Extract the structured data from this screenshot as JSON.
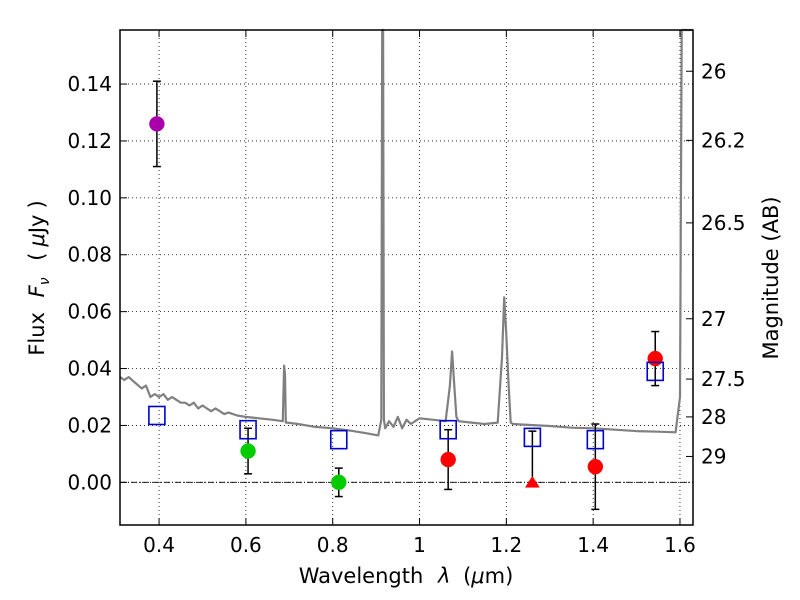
{
  "chart_data": {
    "type": "scatter",
    "xlabel_prefix": "Wavelength",
    "xlabel_symbol": "λ",
    "xlabel_unit_open": "(",
    "xlabel_unit_mu": "μ",
    "xlabel_unit_rest": "m)",
    "ylabel_prefix": "Flux",
    "ylabel_symbol": "F",
    "ylabel_subscript": "ν",
    "ylabel_unit_open": "(",
    "ylabel_unit_mu": "μ",
    "ylabel_unit_rest": "Jy",
    "ylabel_unit_close": ")",
    "y2label": "Magnitude (AB)",
    "xlim": [
      0.31,
      1.63
    ],
    "ylim": [
      -0.015,
      0.159
    ],
    "x_ticks": [
      0.4,
      0.6,
      0.8,
      1.0,
      1.2,
      1.4,
      1.6
    ],
    "x_tick_labels": [
      "0.4",
      "0.6",
      "0.8",
      "1",
      "1.2",
      "1.4",
      "1.6"
    ],
    "y_ticks": [
      0.0,
      0.02,
      0.04,
      0.06,
      0.08,
      0.1,
      0.12,
      0.14
    ],
    "y_tick_labels": [
      "0.00",
      "0.02",
      "0.04",
      "0.06",
      "0.08",
      "0.10",
      "0.12",
      "0.14"
    ],
    "y2_ticks": [
      {
        "label": "26",
        "flux": 0.1445
      },
      {
        "label": "26.2",
        "flux": 0.1202
      },
      {
        "label": "26.5",
        "flux": 0.0912
      },
      {
        "label": "27",
        "flux": 0.0575
      },
      {
        "label": "27.5",
        "flux": 0.0363
      },
      {
        "label": "28",
        "flux": 0.023
      },
      {
        "label": "29",
        "flux": 0.0091
      }
    ],
    "grid": true,
    "zero_line": true,
    "series": [
      {
        "name": "observed-violet",
        "marker": "circle",
        "color": "#aa00aa",
        "points": [
          {
            "x": 0.395,
            "y": 0.126,
            "err": 0.015
          }
        ]
      },
      {
        "name": "observed-green",
        "marker": "circle",
        "color": "#00cc00",
        "points": [
          {
            "x": 0.605,
            "y": 0.011,
            "err": 0.008
          },
          {
            "x": 0.814,
            "y": 0.0,
            "err": 0.005
          }
        ]
      },
      {
        "name": "observed-red",
        "marker": "circle",
        "color": "#ff0000",
        "points": [
          {
            "x": 1.066,
            "y": 0.008,
            "err": 0.0105
          },
          {
            "x": 1.405,
            "y": 0.0055,
            "err": 0.015
          },
          {
            "x": 1.543,
            "y": 0.0435,
            "err": 0.0095
          }
        ]
      },
      {
        "name": "upper-limit",
        "marker": "triangle",
        "color": "#ff0000",
        "points": [
          {
            "x": 1.26,
            "y": 0.0,
            "err_low": 0.0,
            "err_high": 0.018
          }
        ]
      },
      {
        "name": "model-photometry",
        "marker": "square-open",
        "color": "#0000cc",
        "points": [
          {
            "x": 0.395,
            "y": 0.0235
          },
          {
            "x": 0.605,
            "y": 0.0185
          },
          {
            "x": 0.814,
            "y": 0.015
          },
          {
            "x": 1.066,
            "y": 0.0185
          },
          {
            "x": 1.26,
            "y": 0.0158
          },
          {
            "x": 1.405,
            "y": 0.015
          },
          {
            "x": 1.543,
            "y": 0.039
          }
        ]
      },
      {
        "name": "model-spectrum",
        "type": "line",
        "color": "#808080",
        "x": [
          0.31,
          0.32,
          0.33,
          0.345,
          0.36,
          0.37,
          0.38,
          0.39,
          0.4,
          0.41,
          0.42,
          0.43,
          0.44,
          0.45,
          0.46,
          0.47,
          0.48,
          0.49,
          0.5,
          0.51,
          0.52,
          0.53,
          0.54,
          0.55,
          0.56,
          0.58,
          0.6,
          0.63,
          0.66,
          0.685,
          0.688,
          0.69,
          0.692,
          0.695,
          0.72,
          0.76,
          0.8,
          0.84,
          0.88,
          0.905,
          0.912,
          0.914,
          0.916,
          0.918,
          0.921,
          0.93,
          0.94,
          0.95,
          0.96,
          0.97,
          0.98,
          1.0,
          1.03,
          1.06,
          1.07,
          1.075,
          1.08,
          1.085,
          1.09,
          1.12,
          1.15,
          1.18,
          1.19,
          1.195,
          1.2,
          1.205,
          1.21,
          1.215,
          1.25,
          1.3,
          1.35,
          1.4,
          1.45,
          1.5,
          1.55,
          1.59,
          1.6,
          1.602,
          1.604,
          1.606,
          1.63
        ],
        "y": [
          0.037,
          0.036,
          0.037,
          0.035,
          0.033,
          0.034,
          0.03,
          0.031,
          0.03,
          0.031,
          0.029,
          0.03,
          0.029,
          0.028,
          0.028,
          0.027,
          0.028,
          0.026,
          0.027,
          0.026,
          0.025,
          0.026,
          0.025,
          0.024,
          0.0245,
          0.0235,
          0.023,
          0.0225,
          0.022,
          0.0215,
          0.041,
          0.038,
          0.021,
          0.021,
          0.0205,
          0.0195,
          0.019,
          0.0182,
          0.0172,
          0.0165,
          0.022,
          0.16,
          0.16,
          0.022,
          0.019,
          0.0215,
          0.0195,
          0.023,
          0.019,
          0.022,
          0.0205,
          0.0225,
          0.022,
          0.0215,
          0.034,
          0.046,
          0.034,
          0.023,
          0.0215,
          0.021,
          0.0205,
          0.021,
          0.044,
          0.065,
          0.052,
          0.035,
          0.021,
          0.0205,
          0.0202,
          0.0198,
          0.0192,
          0.019,
          0.0185,
          0.018,
          0.0178,
          0.0176,
          0.03,
          0.09,
          0.16,
          0.16,
          0.16
        ]
      }
    ]
  }
}
